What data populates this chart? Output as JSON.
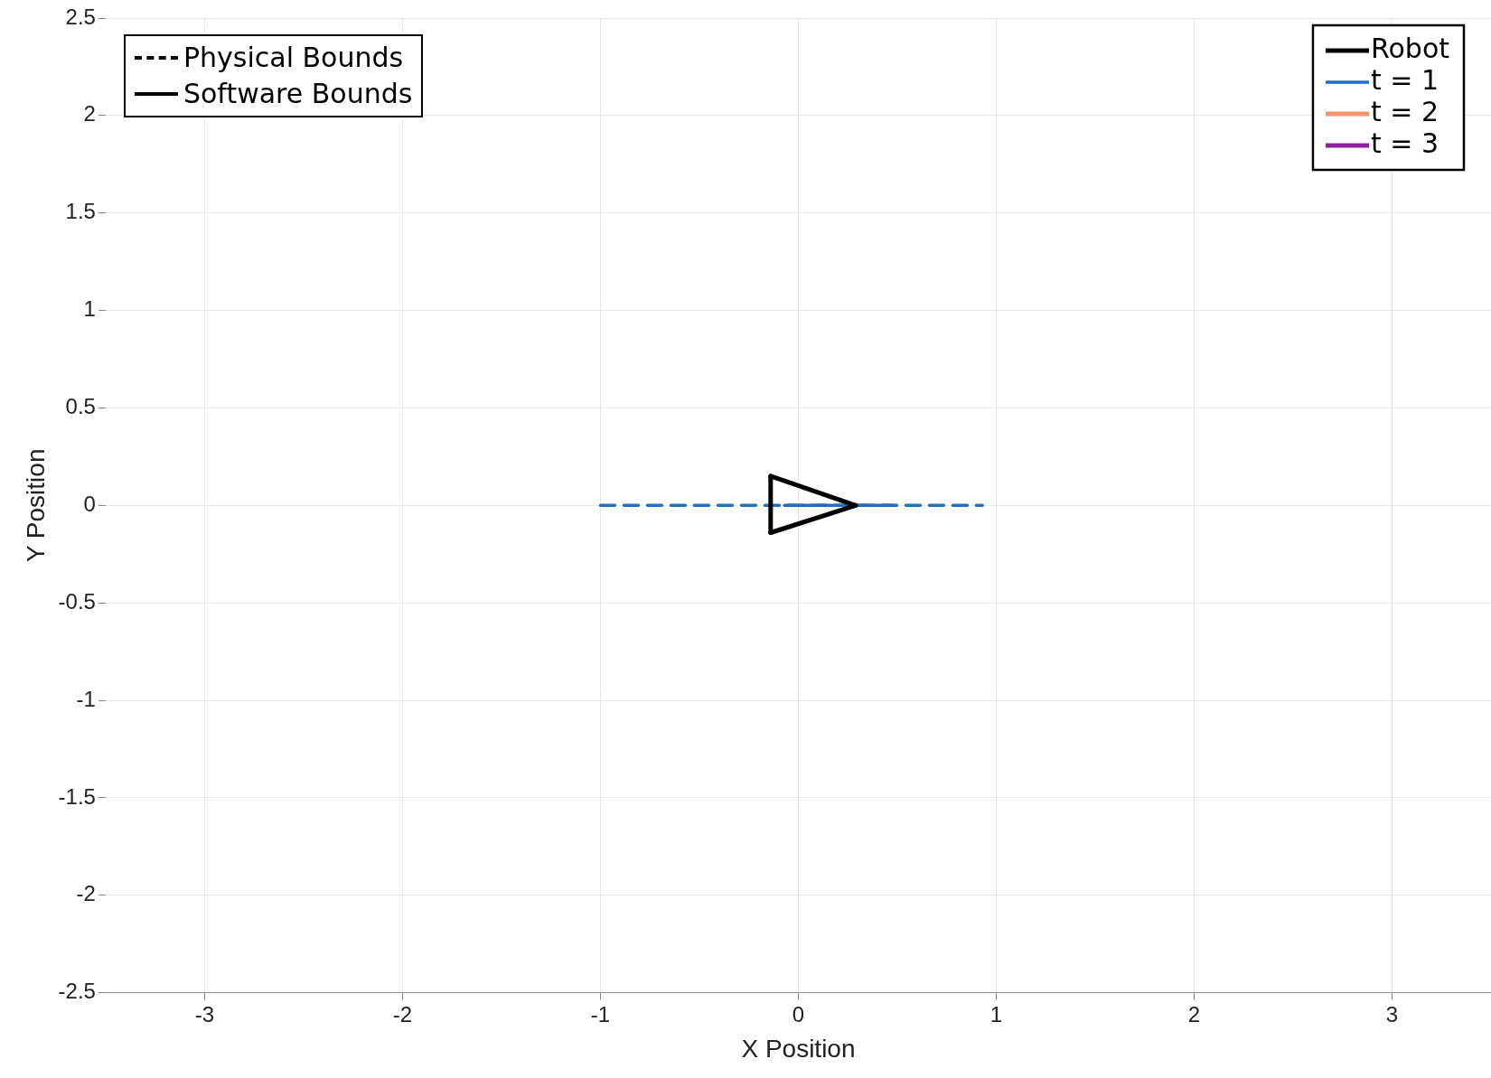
{
  "chart_data": {
    "type": "line",
    "xlabel": "X Position",
    "ylabel": "Y Position",
    "xlim": [
      -3.5,
      3.5
    ],
    "xticks": [
      -3,
      -2,
      -1,
      0,
      1,
      2,
      3
    ],
    "ylim": [
      -2.5,
      2.5
    ],
    "yticks": [
      -2.5,
      -2,
      -1.5,
      -1,
      -0.5,
      0,
      0.5,
      1,
      1.5,
      2,
      2.5
    ],
    "grid": true,
    "legend": "top right",
    "marker": "none",
    "annotations": [
      "Physical Bounds",
      "Software Bounds"
    ],
    "series": [
      {
        "name": "Robot",
        "color": "#000000",
        "x": [
          -0.14,
          0.29
        ],
        "values": [
          0.15,
          0
        ]
      },
      {
        "color": "#000000",
        "x": [
          -0.14,
          0.29
        ],
        "values": [
          -0.14,
          0
        ]
      },
      {
        "color": "#000000",
        "x": [
          -0.14,
          -0.14
        ],
        "values": [
          -0.14,
          0.15
        ]
      },
      {
        "name": "t = 1",
        "color": "#1f6fc6",
        "line_style": "dashed",
        "x": [
          -1,
          0.93
        ],
        "values": [
          0,
          0
        ]
      },
      {
        "color": "#1f6fc6",
        "line_style": "solid",
        "x": [
          -0.07,
          0.48
        ],
        "values": [
          0,
          0
        ]
      },
      {
        "name": "t = 2",
        "color": "#f4926c"
      },
      {
        "name": "t = 3",
        "color": "#8b1fa0"
      }
    ]
  }
}
